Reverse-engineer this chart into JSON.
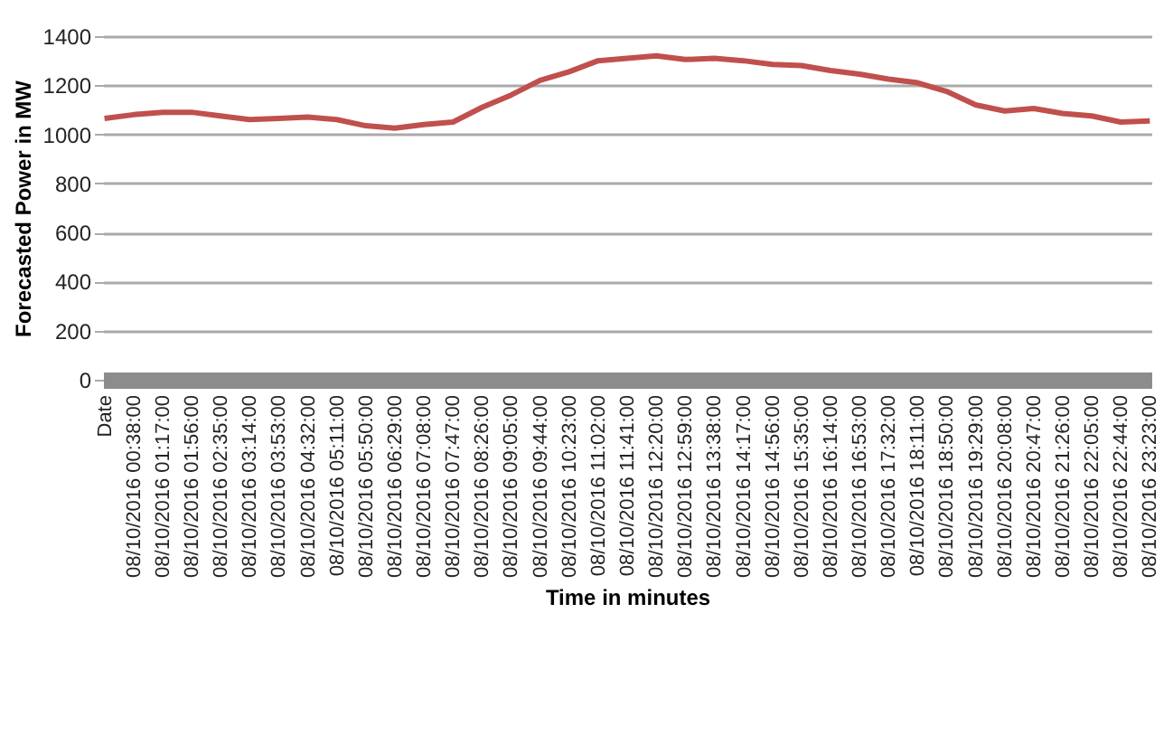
{
  "chart_data": {
    "type": "line",
    "xlabel": "Time in minutes",
    "ylabel": "Forecasted Power in MW",
    "categories": [
      "Date",
      "08/10/2016 00:38:00",
      "08/10/2016 01:17:00",
      "08/10/2016 01:56:00",
      "08/10/2016 02:35:00",
      "08/10/2016 03:14:00",
      "08/10/2016 03:53:00",
      "08/10/2016 04:32:00",
      "08/10/2016 05:11:00",
      "08/10/2016 05:50:00",
      "08/10/2016 06:29:00",
      "08/10/2016 07:08:00",
      "08/10/2016 07:47:00",
      "08/10/2016 08:26:00",
      "08/10/2016 09:05:00",
      "08/10/2016 09:44:00",
      "08/10/2016 10:23:00",
      "08/10/2016 11:02:00",
      "08/10/2016 11:41:00",
      "08/10/2016 12:20:00",
      "08/10/2016 12:59:00",
      "08/10/2016 13:38:00",
      "08/10/2016 14:17:00",
      "08/10/2016 14:56:00",
      "08/10/2016 15:35:00",
      "08/10/2016 16:14:00",
      "08/10/2016 16:53:00",
      "08/10/2016 17:32:00",
      "08/10/2016 18:11:00",
      "08/10/2016 18:50:00",
      "08/10/2016 19:29:00",
      "08/10/2016 20:08:00",
      "08/10/2016 20:47:00",
      "08/10/2016 21:26:00",
      "08/10/2016 22:05:00",
      "08/10/2016 22:44:00",
      "08/10/2016 23:23:00"
    ],
    "series": [
      {
        "color": "#c0504d",
        "values": [
          1065,
          1080,
          1090,
          1090,
          1075,
          1060,
          1065,
          1070,
          1060,
          1035,
          1025,
          1040,
          1050,
          1110,
          1160,
          1220,
          1255,
          1300,
          1310,
          1320,
          1305,
          1310,
          1300,
          1285,
          1280,
          1260,
          1245,
          1225,
          1210,
          1175,
          1120,
          1095,
          1105,
          1085,
          1075,
          1050,
          1055
        ]
      }
    ],
    "ylim": [
      0,
      1400
    ],
    "yticks": [
      0,
      200,
      400,
      600,
      800,
      1000,
      1200,
      1400
    ],
    "grid": "y",
    "legend": false,
    "marker": "none",
    "line_style": "solid"
  }
}
